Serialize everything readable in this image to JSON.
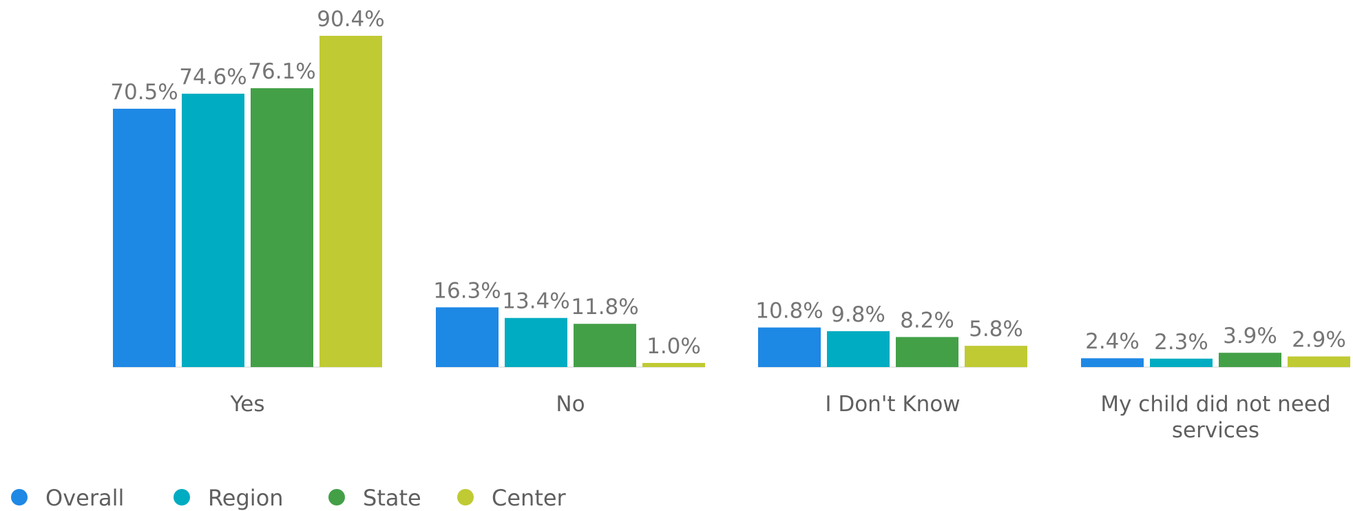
{
  "chart_data": {
    "type": "bar",
    "title": "",
    "xlabel": "",
    "ylabel": "",
    "ylim": [
      0,
      90.4
    ],
    "grid": false,
    "legend_position": "bottom-left",
    "categories": [
      "Yes",
      "No",
      "I Don't Know",
      "My child did not need services"
    ],
    "series": [
      {
        "name": "Overall",
        "color": "#1e88e5",
        "values": [
          70.5,
          16.3,
          10.8,
          2.4
        ],
        "labels": [
          "70.5%",
          "16.3%",
          "10.8%",
          "2.4%"
        ]
      },
      {
        "name": "Region",
        "color": "#00acc1",
        "values": [
          74.6,
          13.4,
          9.8,
          2.3
        ],
        "labels": [
          "74.6%",
          "13.4%",
          "9.8%",
          "2.3%"
        ]
      },
      {
        "name": "State",
        "color": "#43a047",
        "values": [
          76.1,
          11.8,
          8.2,
          3.9
        ],
        "labels": [
          "76.1%",
          "11.8%",
          "8.2%",
          "3.9%"
        ]
      },
      {
        "name": "Center",
        "color": "#c0ca33",
        "values": [
          90.4,
          1.0,
          5.8,
          2.9
        ],
        "labels": [
          "90.4%",
          "1.0%",
          "5.8%",
          "2.9%"
        ]
      }
    ]
  }
}
